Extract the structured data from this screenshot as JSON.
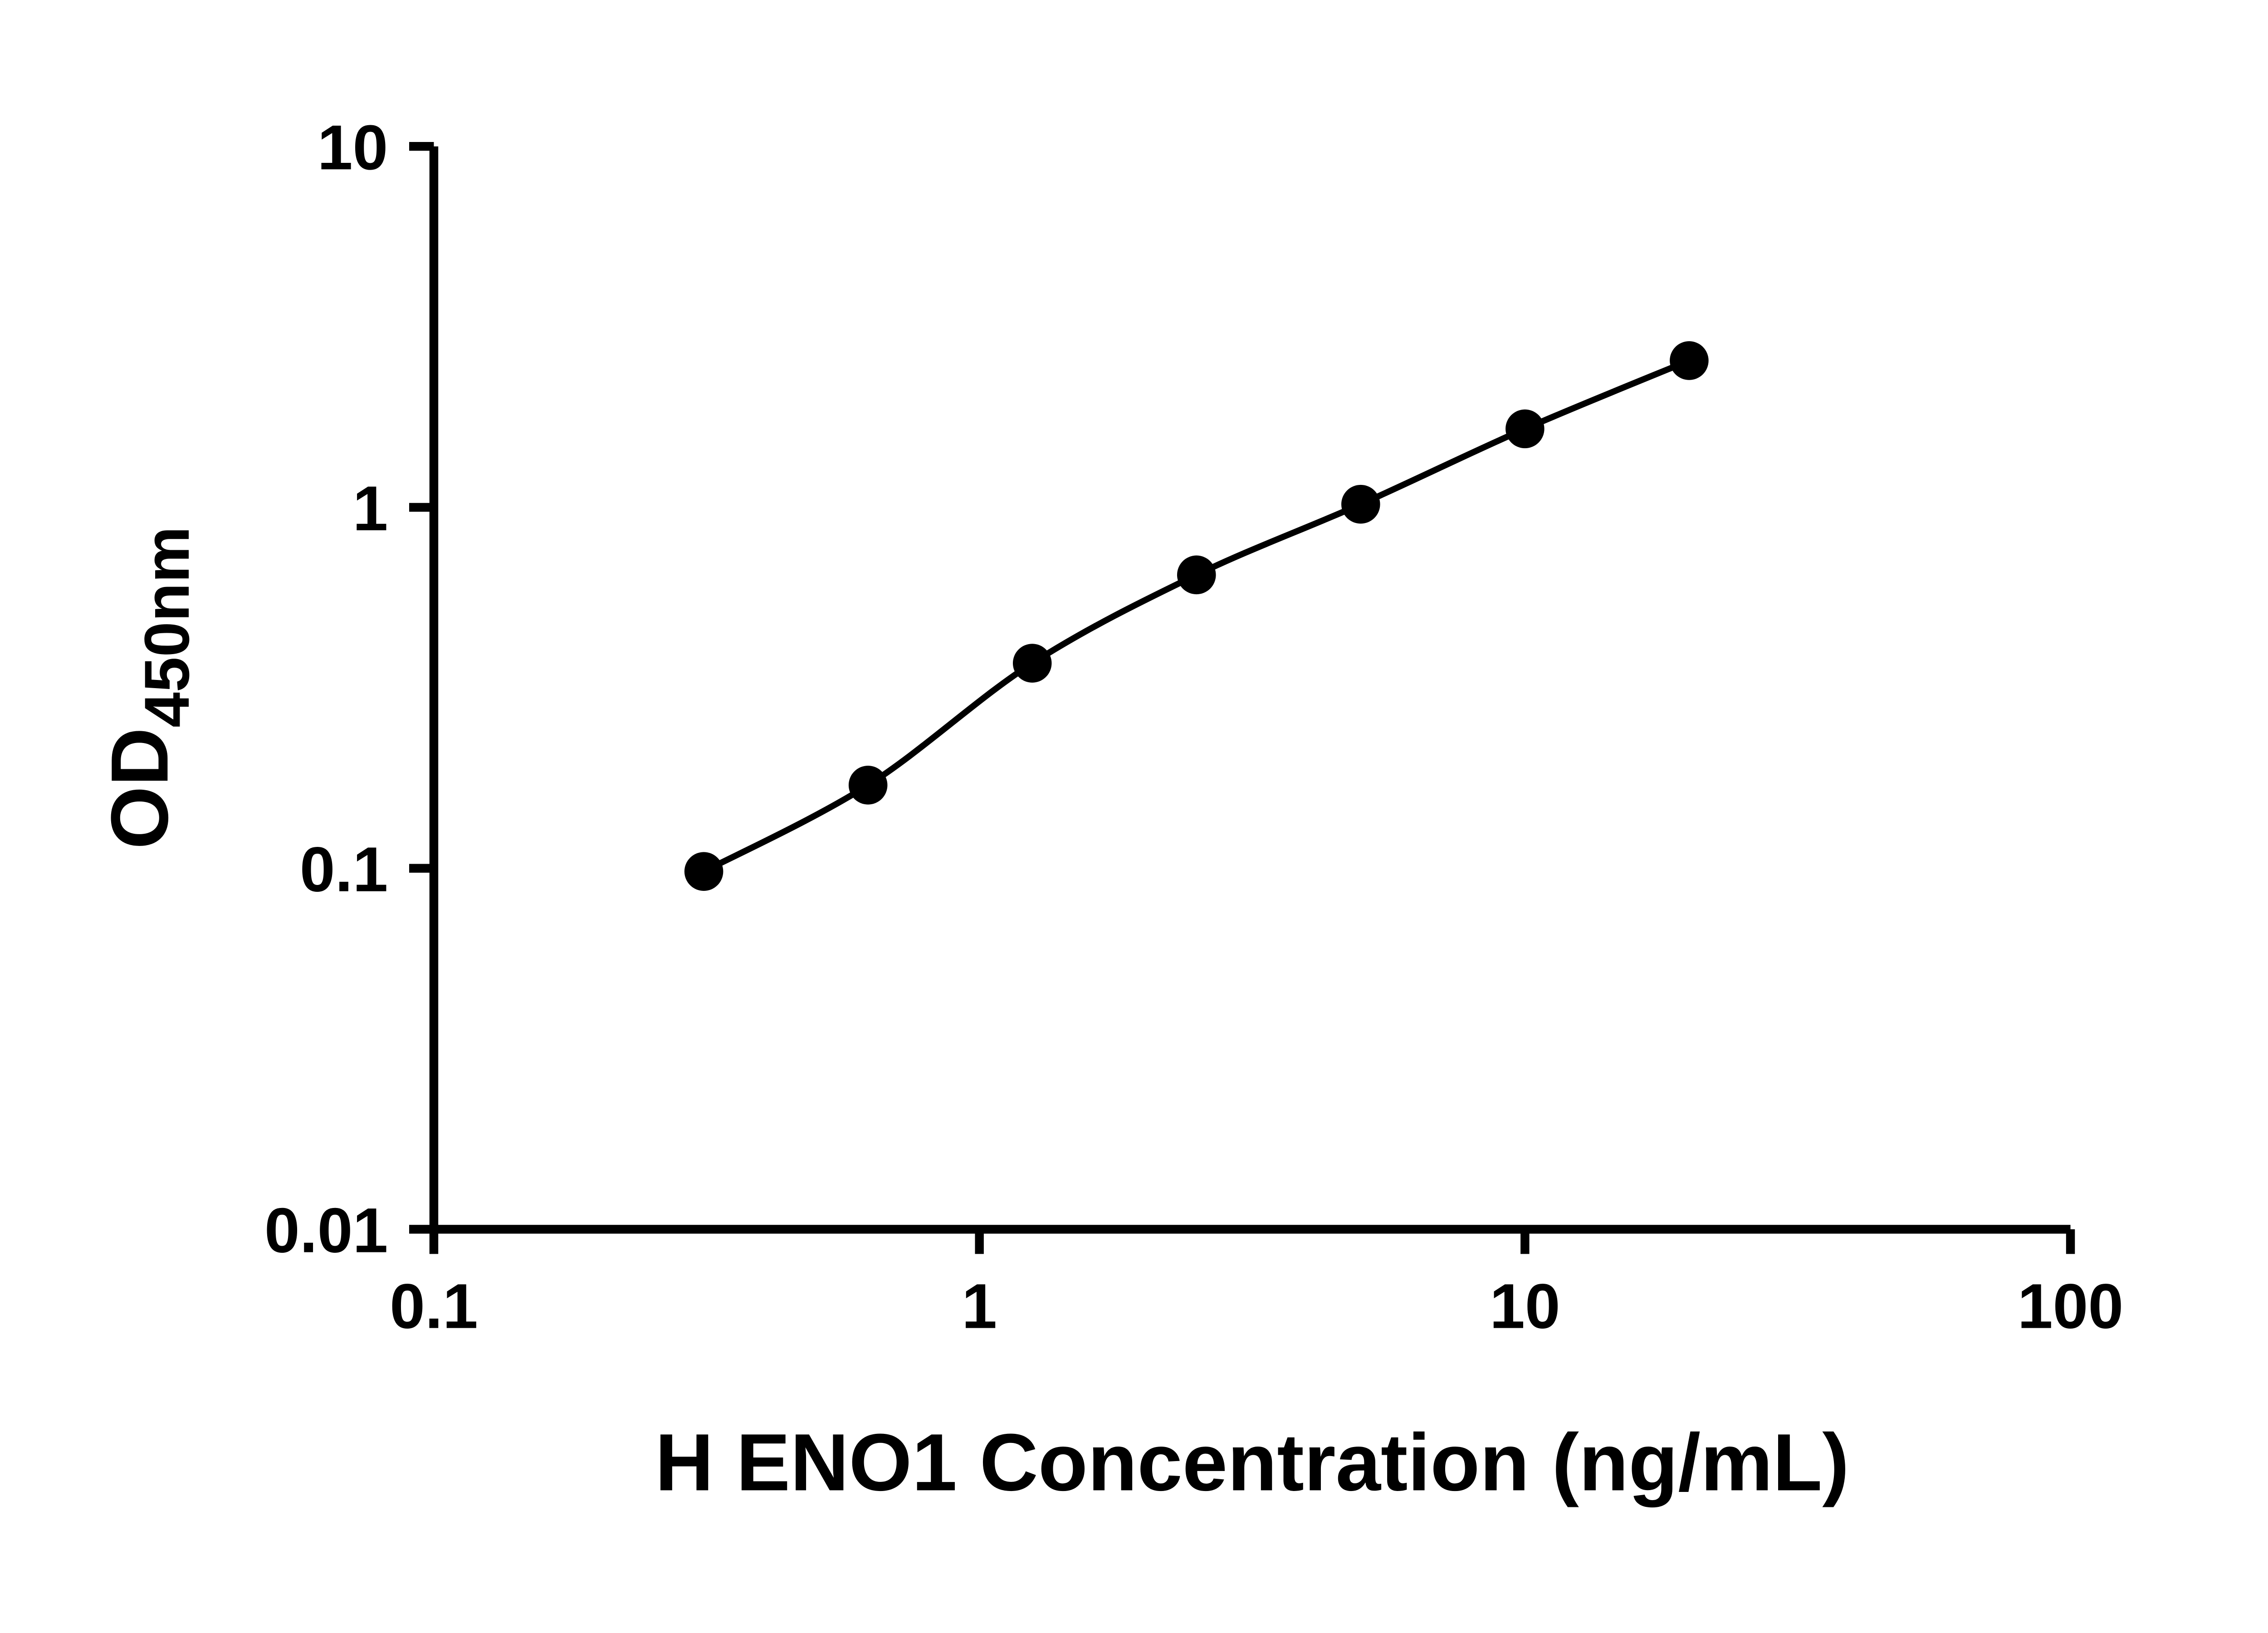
{
  "figure": {
    "background_color": "#ffffff"
  },
  "chart_data": {
    "type": "scatter",
    "subtype": "standard-curve-with-fit-line",
    "xlabel": "H ENO1 Concentration (ng/mL)",
    "ylabel_main": "OD",
    "ylabel_sub": "450nm",
    "x_scale": "log10",
    "y_scale": "log10",
    "xlim": [
      0.1,
      100
    ],
    "ylim": [
      0.01,
      10
    ],
    "x_ticks": [
      0.1,
      1,
      10,
      100
    ],
    "x_tick_labels": [
      "0.1",
      "1",
      "10",
      "100"
    ],
    "y_ticks": [
      0.01,
      0.1,
      1,
      10
    ],
    "y_tick_labels": [
      "0.01",
      "0.1",
      "1",
      "10"
    ],
    "x": [
      0.3125,
      0.625,
      1.25,
      2.5,
      5,
      10,
      20
    ],
    "y": [
      0.098,
      0.17,
      0.37,
      0.65,
      1.02,
      1.65,
      2.55
    ],
    "grid": false,
    "legend": "none",
    "axis_color": "#000000",
    "line_color": "#000000",
    "marker_color": "#000000",
    "marker_shape": "filled-circle"
  }
}
